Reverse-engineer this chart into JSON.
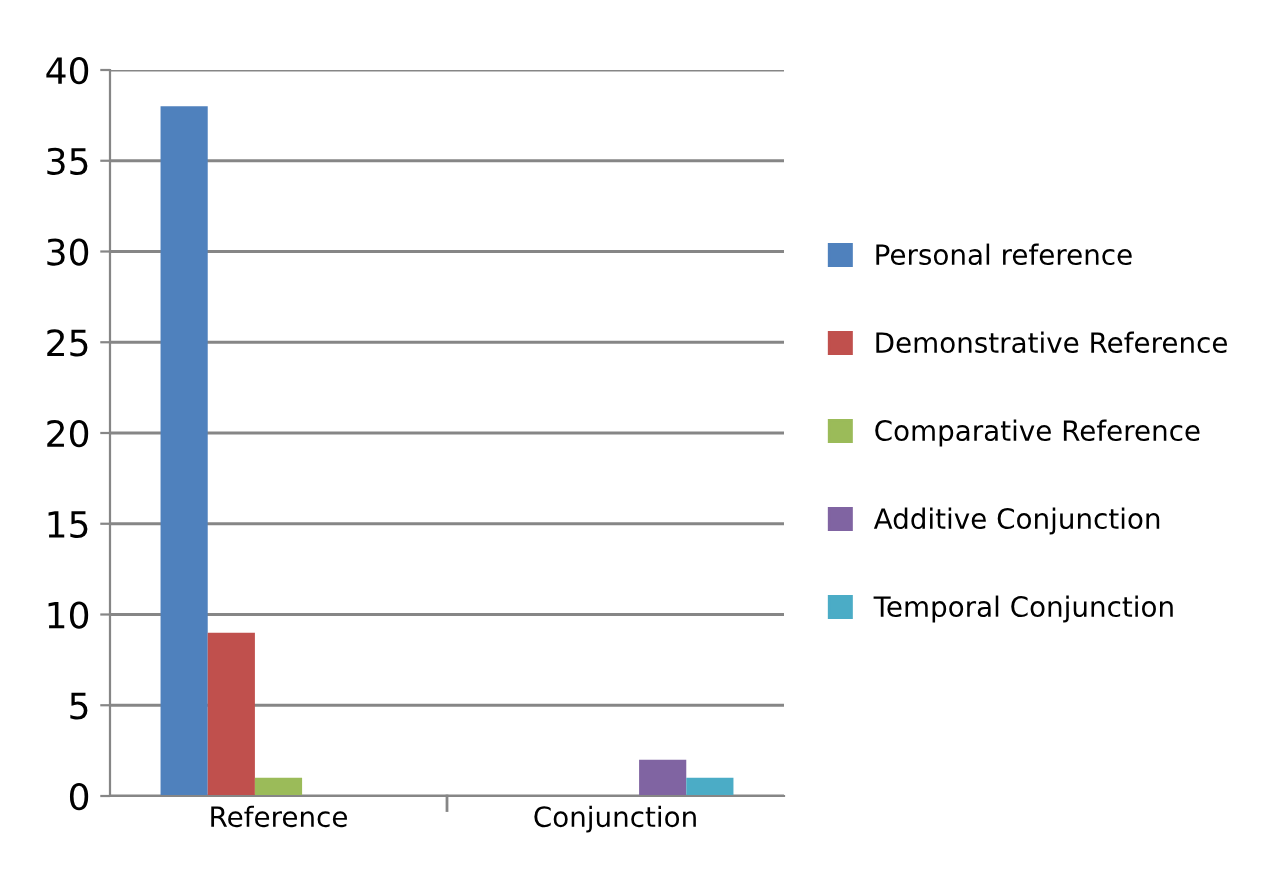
{
  "chart_data": {
    "type": "bar",
    "categories": [
      "Reference",
      "Conjunction"
    ],
    "series": [
      {
        "name": "Personal reference",
        "color": "#4f81bd",
        "values": [
          38,
          null
        ]
      },
      {
        "name": "Demonstrative Reference",
        "color": "#c0504d",
        "values": [
          9,
          null
        ]
      },
      {
        "name": "Comparative Reference",
        "color": "#9bbb59",
        "values": [
          1,
          null
        ]
      },
      {
        "name": "Additive Conjunction",
        "color": "#8064a2",
        "values": [
          null,
          2
        ]
      },
      {
        "name": "Temporal Conjunction",
        "color": "#4bacc6",
        "values": [
          null,
          1
        ]
      }
    ],
    "ylim": [
      0,
      40
    ],
    "yticks": [
      0,
      5,
      10,
      15,
      20,
      25,
      30,
      35,
      40
    ],
    "grid": "y",
    "legend": "right"
  }
}
